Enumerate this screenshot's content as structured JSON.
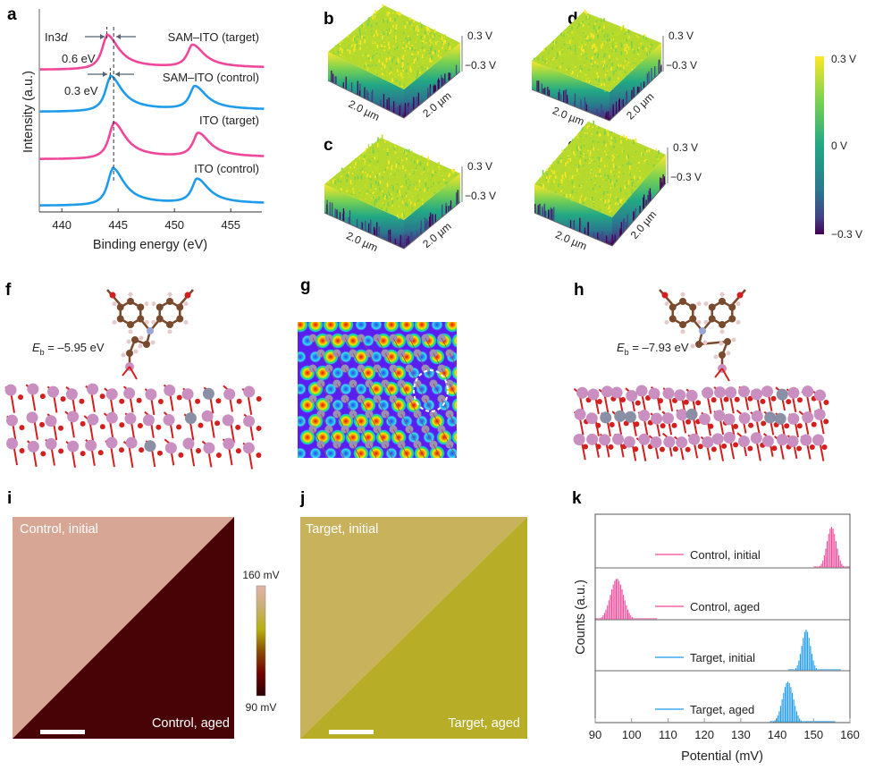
{
  "panel_labels": {
    "a": "a",
    "b": "b",
    "c": "c",
    "d": "d",
    "e": "e",
    "f": "f",
    "g": "g",
    "h": "h",
    "i": "i",
    "j": "j",
    "k": "k"
  },
  "chart_data": [
    {
      "panel": "a",
      "type": "line",
      "xlabel": "Binding energy (eV)",
      "ylabel": "Intensity (a.u.)",
      "xlim": [
        438,
        458
      ],
      "xticks": [
        440,
        445,
        450,
        455
      ],
      "annotation_main": "In3",
      "annotation_italic": "d",
      "shift_labels": [
        "0.6 eV",
        "0.3 eV"
      ],
      "reference_line_ev": 444.6,
      "series": [
        {
          "name": "SAM–ITO (target)",
          "color": "#f0479b",
          "peaks_ev": [
            444.0,
            451.6
          ]
        },
        {
          "name": "SAM–ITO (control)",
          "color": "#1e9bea",
          "peaks_ev": [
            444.3,
            451.8
          ]
        },
        {
          "name": "ITO (target)",
          "color": "#f0479b",
          "peaks_ev": [
            444.6,
            452.1
          ]
        },
        {
          "name": "ITO (control)",
          "color": "#1e9bea",
          "peaks_ev": [
            444.5,
            452.0
          ]
        }
      ]
    },
    {
      "panel": "k",
      "type": "bar",
      "xlabel": "Potential (mV)",
      "ylabel": "Counts (a.u.)",
      "xlim": [
        90,
        160
      ],
      "xticks": [
        90,
        100,
        110,
        120,
        130,
        140,
        150,
        160
      ],
      "series": [
        {
          "name": "Control, initial",
          "color": "#f0479b",
          "center_mV": 155,
          "sd_mV": 1.3,
          "range_mV": [
            150,
            160
          ]
        },
        {
          "name": "Control, aged",
          "color": "#f0479b",
          "center_mV": 96,
          "sd_mV": 1.8,
          "range_mV": [
            90,
            107
          ]
        },
        {
          "name": "Target, initial",
          "color": "#1e9bea",
          "center_mV": 148,
          "sd_mV": 1.2,
          "range_mV": [
            143,
            157.5
          ]
        },
        {
          "name": "Target, aged",
          "color": "#1e9bea",
          "center_mV": 143,
          "sd_mV": 1.5,
          "range_mV": [
            138,
            156
          ]
        }
      ]
    }
  ],
  "surface_3d": {
    "scale_label": "2.0 µm",
    "z_top": "0.3 V",
    "z_bottom": "−0.3 V",
    "colorbar": {
      "top": "0.3 V",
      "mid": "0 V",
      "bottom": "−0.3 V",
      "colormap": "viridis"
    }
  },
  "dft": {
    "f_energy": {
      "symbol": "E",
      "sub": "b",
      "value": " = –5.95 eV"
    },
    "h_energy": {
      "symbol": "E",
      "sub": "b",
      "value": " = –7.93 eV"
    },
    "colors": {
      "in_atom": "#c98fc0",
      "o_atom": "#d41f1f",
      "c_atom": "#7a4a2e",
      "h_atom": "#e6c9c9",
      "n_atom": "#9aa6d6",
      "sn_atom": "#8a8fa6"
    }
  },
  "kpfm": {
    "i": {
      "initial_label": "Control, initial",
      "aged_label": "Control, aged",
      "initial_color": "#d7a694",
      "aged_color": "#470306"
    },
    "j": {
      "initial_label": "Target, initial",
      "aged_label": "Target, aged",
      "initial_color": "#c9b25c",
      "aged_color": "#b8ad27"
    },
    "colorbar": {
      "top": "160 mV",
      "bottom": "90 mV"
    }
  }
}
